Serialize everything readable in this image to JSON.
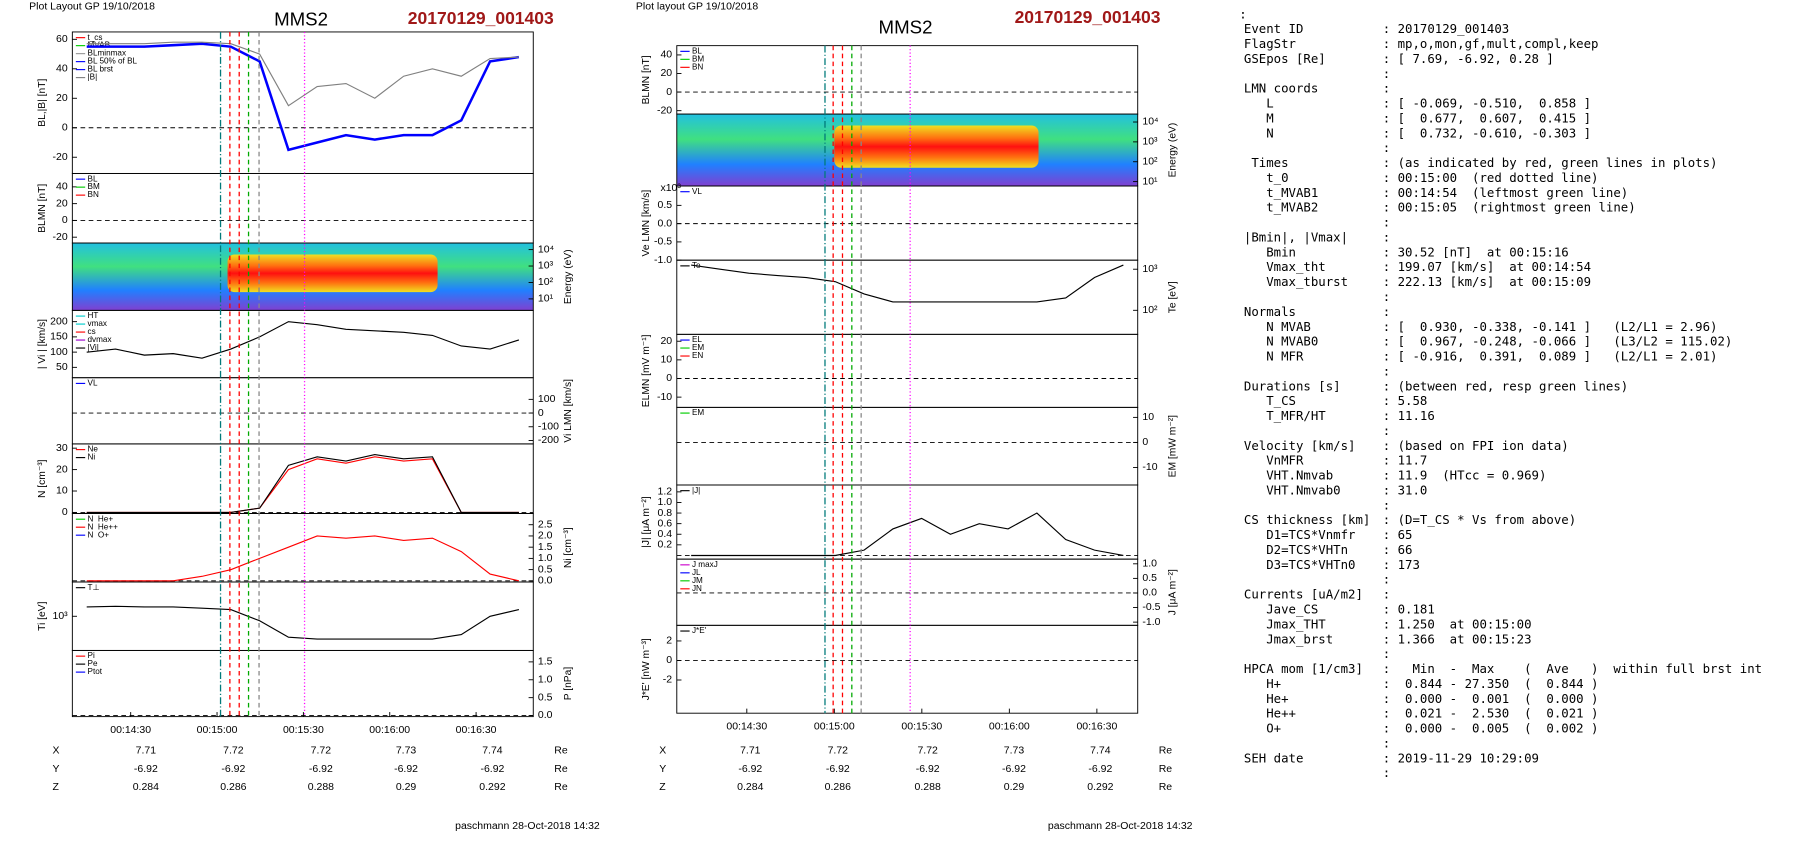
{
  "left": {
    "header": "Plot Layout GP 19/10/2018",
    "title": "MMS2",
    "event": "20170129_001403",
    "panels": [
      {
        "ylabel": "BL,|B| [nT]",
        "ylim": [
          -31,
          65
        ],
        "yticks": [
          60,
          40,
          20,
          0,
          -20
        ],
        "series": [
          {
            "name": "t_cs",
            "color": "#ff0000"
          },
          {
            "name": "MVAB",
            "color": "#00cc00"
          },
          {
            "name": "BLminmax",
            "color": "#999999"
          },
          {
            "name": "BL 50% of BL",
            "color": "#0000ff"
          },
          {
            "name": "BL brst",
            "color": "#0000ff",
            "values": [
              55,
              55,
              55,
              56,
              57,
              55,
              45,
              -15,
              -10,
              -5,
              -8,
              -5,
              -5,
              5,
              45,
              48
            ]
          },
          {
            "name": "|B|",
            "color": "#808080",
            "values": [
              57,
              57,
              57,
              58,
              58,
              57,
              50,
              15,
              28,
              30,
              20,
              35,
              40,
              35,
              47,
              48
            ]
          }
        ]
      },
      {
        "ylabel": "BLMN [nT]",
        "ylim": [
          -27,
          56
        ],
        "yticks": [
          40,
          20,
          0,
          -20
        ],
        "series": [
          {
            "name": "BL",
            "color": "#0000ff"
          },
          {
            "name": "BM",
            "color": "#00cc00"
          },
          {
            "name": "BN",
            "color": "#ff0000"
          }
        ]
      },
      {
        "y2label": "Energy (eV)",
        "log": true,
        "y2lim": [
          2,
          25000
        ],
        "y2ticks": [
          {
            "value": 10000,
            "label": "10⁴"
          },
          {
            "value": 1000,
            "label": "10³"
          },
          {
            "value": 100,
            "label": "10²"
          },
          {
            "value": 10,
            "label": "10¹"
          }
        ]
      },
      {
        "ylabel": "| Vi | [km/s]",
        "ylim": [
          16,
          237
        ],
        "yticks": [
          200,
          150,
          100,
          50
        ],
        "series": [
          {
            "name": "HT",
            "color": "#00cccc"
          },
          {
            "name": "vmax",
            "color": "#00cccc"
          },
          {
            "name": "cs",
            "color": "#ff0000"
          },
          {
            "name": "dvmax",
            "color": "#9900cc"
          },
          {
            "name": "|Vi|",
            "color": "#000000",
            "values": [
              100,
              110,
              90,
              95,
              80,
              110,
              150,
              200,
              190,
              175,
              170,
              165,
              155,
              120,
              110,
              140
            ]
          }
        ]
      },
      {
        "y2label": "Vi LMN [km/s]",
        "y2lim": [
          -225,
          258
        ],
        "y2ticks": [
          100,
          0,
          -100,
          -200
        ],
        "series": [
          {
            "name": "VL",
            "color": "#0000ff"
          }
        ]
      },
      {
        "ylabel": "N [cm⁻³]",
        "ylim": [
          -0.5,
          32
        ],
        "yticks": [
          30,
          20,
          10,
          0
        ],
        "series": [
          {
            "name": "Ne",
            "color": "#ff0000",
            "values": [
              0,
              0,
              0,
              0,
              0,
              0,
              2,
              20,
              25,
              23,
              26,
              24,
              25,
              0,
              0,
              0
            ]
          },
          {
            "name": "Ni",
            "color": "#000000",
            "values": [
              0,
              0,
              0,
              0,
              0,
              0,
              2,
              22,
              26,
              24,
              27,
              25,
              26,
              0,
              0,
              0
            ]
          }
        ]
      },
      {
        "y2label": "Ni [cm⁻³]",
        "y2lim": [
          -0.05,
          3.0
        ],
        "y2ticks": [
          {
            "value": 2.5,
            "label": "2.5"
          },
          {
            "value": 2,
            "label": "2.0"
          },
          {
            "value": 1.5,
            "label": "1.5"
          },
          {
            "value": 1,
            "label": "1.0"
          },
          {
            "value": 0.5,
            "label": "0.5"
          },
          {
            "value": 0,
            "label": "0.0"
          }
        ],
        "series": [
          {
            "name": "N  He+",
            "color": "#00cc00"
          },
          {
            "name": "N  He++",
            "color": "#ff0000",
            "values": [
              0,
              0,
              0,
              0,
              0.2,
              0.5,
              1.0,
              1.5,
              2.0,
              1.9,
              2.0,
              1.8,
              1.9,
              1.3,
              0.3,
              0
            ]
          },
          {
            "name": "N  O+",
            "color": "#0000ff"
          }
        ]
      },
      {
        "ylabel": "Ti [eV]",
        "log": true,
        "ylim": [
          180,
          5600
        ],
        "yticks": [
          {
            "value": 1000,
            "label": "10³"
          }
        ],
        "series": [
          {
            "name": "T⊥",
            "color": "#000000",
            "values": [
              1600,
              1650,
              1600,
              1600,
              1500,
              1400,
              800,
              350,
              320,
              320,
              320,
              320,
              320,
              400,
              1000,
              1400
            ]
          }
        ]
      },
      {
        "y2label": "P [nPa]",
        "y2lim": [
          -0.03,
          1.82
        ],
        "y2ticks": [
          {
            "value": 1.5,
            "label": "1.5"
          },
          {
            "value": 1,
            "label": "1.0"
          },
          {
            "value": 0.5,
            "label": "0.5"
          },
          {
            "value": 0,
            "label": "0.0"
          }
        ],
        "series": [
          {
            "name": "Pi",
            "color": "#ff0000"
          },
          {
            "name": "Pe",
            "color": "#000000"
          },
          {
            "name": "Ptot",
            "color": "#0000ff"
          }
        ]
      }
    ],
    "xticks": [
      "00:14:30",
      "00:15:00",
      "00:15:30",
      "00:16:00",
      "00:16:30"
    ],
    "ephemeris": [
      [
        "X",
        "7.71",
        "7.72",
        "7.72",
        "7.73",
        "7.74",
        "Re"
      ],
      [
        "Y",
        "-6.92",
        "-6.92",
        "-6.92",
        "-6.92",
        "-6.92",
        "Re"
      ],
      [
        "Z",
        "0.284",
        "0.286",
        "0.288",
        "0.29",
        "0.292",
        "Re"
      ]
    ],
    "footer": "paschmann 28-Oct-2018 14:32"
  },
  "middle": {
    "header": "Plot layout GP 19/10/2018",
    "title": "MMS2",
    "event": "20170129_001403",
    "panels": [
      {
        "ylabel": "BLMN [nT]",
        "ylim": [
          -23.7,
          50
        ],
        "yticks": [
          40,
          20,
          0,
          -20
        ],
        "series": [
          {
            "name": "BL",
            "color": "#0000ff"
          },
          {
            "name": "BM",
            "color": "#00cc00"
          },
          {
            "name": "BN",
            "color": "#ff0000"
          }
        ]
      },
      {
        "y2label": "Energy (eV)",
        "log": true,
        "y2lim": [
          6,
          25000
        ],
        "y2ticks": [
          {
            "value": 10000,
            "label": "10⁴"
          },
          {
            "value": 1000,
            "label": "10³"
          },
          {
            "value": 100,
            "label": "10²"
          },
          {
            "value": 10,
            "label": "10¹"
          }
        ]
      },
      {
        "ylabel": "Ve LMN [km/s]",
        "ylabel_note": "x10³",
        "ylim": [
          -1.0,
          1.03
        ],
        "yticks": [
          {
            "value": 0.5,
            "label": "0.5"
          },
          {
            "value": 0,
            "label": "0.0"
          },
          {
            "value": -0.5,
            "label": "-0.5"
          },
          {
            "value": -1,
            "label": "-1.0"
          }
        ],
        "series": [
          {
            "name": "VL",
            "color": "#0000ff"
          }
        ]
      },
      {
        "y2label": "Te [eV]",
        "log": true,
        "y2lim": [
          26,
          1660
        ],
        "y2ticks": [
          {
            "value": 1000,
            "label": "10³"
          },
          {
            "value": 100,
            "label": "10²"
          }
        ],
        "series": [
          {
            "name": "Te",
            "color": "#000000",
            "axis": "y2",
            "values": [
              1260,
              1000,
              800,
              700,
              630,
              500,
              250,
              160,
              160,
              160,
              160,
              160,
              160,
              200,
              630,
              1260
            ]
          }
        ]
      },
      {
        "ylabel": "ELMN [mV m⁻¹]",
        "ylim": [
          -15.5,
          23.7
        ],
        "yticks": [
          20,
          10,
          0,
          -10
        ],
        "series": [
          {
            "name": "EL",
            "color": "#0000ff"
          },
          {
            "name": "EM",
            "color": "#00cc00"
          },
          {
            "name": "EN",
            "color": "#ff0000"
          }
        ]
      },
      {
        "y2label": "EM [mW m⁻²]",
        "y2lim": [
          -17,
          14
        ],
        "y2ticks": [
          10,
          0,
          -10
        ],
        "series": [
          {
            "name": "EM",
            "color": "#00cc00"
          }
        ]
      },
      {
        "ylabel": "|J| [μA m⁻²]",
        "ylim": [
          -0.07,
          1.33
        ],
        "yticks": [
          {
            "value": 1.2,
            "label": "1.2"
          },
          {
            "value": 1,
            "label": "1.0"
          },
          {
            "value": 0.8,
            "label": "0.8"
          },
          {
            "value": 0.6,
            "label": "0.6"
          },
          {
            "value": 0.4,
            "label": "0.4"
          },
          {
            "value": 0.2,
            "label": "0.2"
          }
        ],
        "series": [
          {
            "name": "|J|",
            "color": "#000000",
            "values": [
              0,
              0,
              0,
              0,
              0,
              0,
              0.1,
              0.5,
              0.7,
              0.4,
              0.6,
              0.5,
              0.8,
              0.3,
              0.1,
              0
            ]
          }
        ]
      },
      {
        "y2label": "J [μA m⁻²]",
        "y2lim": [
          -1.11,
          1.16
        ],
        "y2ticks": [
          {
            "value": 1,
            "label": "1.0"
          },
          {
            "value": 0.5,
            "label": "0.5"
          },
          {
            "value": 0,
            "label": "0.0"
          },
          {
            "value": -0.5,
            "label": "-0.5"
          },
          {
            "value": -1,
            "label": "-1.0"
          }
        ],
        "series": [
          {
            "name": "J maxJ",
            "color": "#cc00cc"
          },
          {
            "name": "JL",
            "color": "#0000ff"
          },
          {
            "name": "JM",
            "color": "#00cc00"
          },
          {
            "name": "JN",
            "color": "#ff0000"
          }
        ]
      },
      {
        "ylabel": "J*E' [nW m⁻³]",
        "ylim": [
          -5.4,
          3.6
        ],
        "yticks": [
          2,
          0,
          -2
        ],
        "series": [
          {
            "name": "J*E'",
            "color": "#000000"
          }
        ]
      }
    ],
    "xticks": [
      "00:14:30",
      "00:15:00",
      "00:15:30",
      "00:16:00",
      "00:16:30"
    ],
    "ephemeris": [
      [
        "X",
        "7.71",
        "7.72",
        "7.72",
        "7.73",
        "7.74",
        "Re"
      ],
      [
        "Y",
        "-6.92",
        "-6.92",
        "-6.92",
        "-6.92",
        "-6.92",
        "Re"
      ],
      [
        "Z",
        "0.284",
        "0.286",
        "0.288",
        "0.29",
        "0.292",
        "Re"
      ]
    ],
    "footer": "paschmann 28-Oct-2018 14:32"
  },
  "info": {
    "lines": [
      {
        "text": ":"
      },
      {
        "label": "Event ID",
        "text": ": 20170129_001403"
      },
      {
        "label": "FlagStr",
        "text": ": mp,o,mon,gf,mult,compl,keep"
      },
      {
        "label": "GSEpos [Re]",
        "text": ": [ 7.69, -6.92, 0.28 ]"
      },
      {
        "text": ":"
      },
      {
        "label": "LMN coords",
        "text": ":"
      },
      {
        "label": "   L",
        "text": ": [ -0.069, -0.510,  0.858 ]"
      },
      {
        "label": "   M",
        "text": ": [  0.677,  0.607,  0.415 ]"
      },
      {
        "label": "   N",
        "text": ": [  0.732, -0.610, -0.303 ]"
      },
      {
        "text": ":"
      },
      {
        "label": " Times",
        "text": ": (as indicated by red, green lines in plots)"
      },
      {
        "label": "   t_0",
        "text": ": 00:15:00  (red dotted line)"
      },
      {
        "label": "   t_MVAB1",
        "text": ": 00:14:54  (leftmost green line)"
      },
      {
        "label": "   t_MVAB2",
        "text": ": 00:15:05  (rightmost green line)"
      },
      {
        "text": ":"
      },
      {
        "label": "|Bmin|, |Vmax|",
        "text": ":"
      },
      {
        "label": "   Bmin",
        "text": ": 30.52 [nT]  at 00:15:16"
      },
      {
        "label": "   Vmax_tht",
        "text": ": 199.07 [km/s]  at 00:14:54"
      },
      {
        "label": "   Vmax_tburst",
        "text": ": 222.13 [km/s]  at 00:15:09"
      },
      {
        "text": ":"
      },
      {
        "label": "Normals",
        "text": ":"
      },
      {
        "label": "   N MVAB",
        "text": ": [  0.930, -0.338, -0.141 ]   (L2/L1 = 2.96)"
      },
      {
        "label": "   N MVAB0",
        "text": ": [  0.967, -0.248, -0.066 ]   (L3/L2 = 115.02)"
      },
      {
        "label": "   N MFR",
        "text": ": [ -0.916,  0.391,  0.089 ]   (L2/L1 = 2.01)"
      },
      {
        "text": ":"
      },
      {
        "label": "Durations [s]",
        "text": ": (between red, resp green lines)"
      },
      {
        "label": "   T_CS",
        "text": ": 5.58"
      },
      {
        "label": "   T_MFR/HT",
        "text": ": 11.16"
      },
      {
        "text": ":"
      },
      {
        "label": "Velocity [km/s]",
        "text": ": (based on FPI ion data)"
      },
      {
        "label": "   VnMFR",
        "text": ": 11.7"
      },
      {
        "label": "   VHT.Nmvab",
        "text": ": 11.9  (HTcc = 0.969)"
      },
      {
        "label": "   VHT.Nmvab0",
        "text": ": 31.0"
      },
      {
        "text": ":"
      },
      {
        "label": "CS thickness [km]",
        "text": ": (D=T_CS * Vs from above)"
      },
      {
        "label": "   D1=TCS*Vnmfr",
        "text": ": 65"
      },
      {
        "label": "   D2=TCS*VHTn",
        "text": ": 66"
      },
      {
        "label": "   D3=TCS*VHTn0",
        "text": ": 173"
      },
      {
        "text": ":"
      },
      {
        "label": "Currents [uA/m2]",
        "text": ":"
      },
      {
        "label": "   Jave_CS",
        "text": ": 0.181"
      },
      {
        "label": "   Jmax_THT",
        "text": ": 1.250  at 00:15:00"
      },
      {
        "label": "   Jmax_brst",
        "text": ": 1.366  at 00:15:23"
      },
      {
        "text": ":"
      },
      {
        "label": "HPCA mom [1/cm3]",
        "text": ":   Min  -  Max    (  Ave   )  within full brst int"
      },
      {
        "label": "   H+",
        "text": ":  0.844 - 27.350  (  0.844 )"
      },
      {
        "label": "   He+",
        "text": ":  0.000 -  0.001  (  0.000 )"
      },
      {
        "label": "   He++",
        "text": ":  0.021 -  2.530  (  0.021 )"
      },
      {
        "label": "   O+",
        "text": ":  0.000 -  0.005  (  0.002 )"
      },
      {
        "text": ":"
      },
      {
        "label": "SEH date",
        "text": ": 2019-11-29 10:29:09"
      },
      {
        "text": ":"
      }
    ]
  }
}
